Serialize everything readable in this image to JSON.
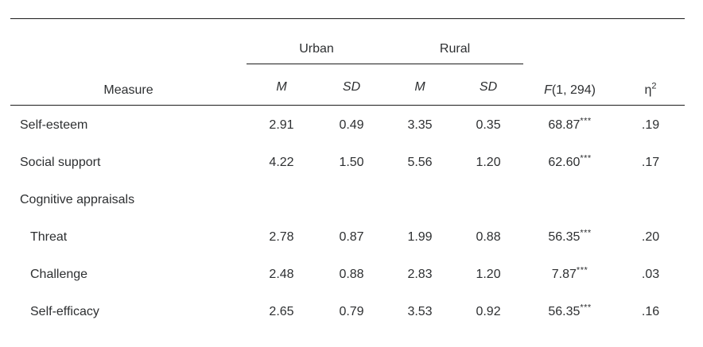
{
  "chart_data": {
    "type": "table",
    "headers": {
      "measure": "Measure",
      "group_urban": "Urban",
      "group_rural": "Rural",
      "f_prefix": "F",
      "f_suffix": "(1, 294)",
      "eta": "η",
      "eta_sup": "2",
      "urban_m": "M",
      "urban_sd": "SD",
      "rural_m": "M",
      "rural_sd": "SD"
    },
    "rows": [
      {
        "label": "Self-esteem",
        "urban_m": "2.91",
        "urban_sd": "0.49",
        "rural_m": "3.35",
        "rural_sd": "0.35",
        "f": "68.87",
        "sig": "***",
        "eta_sq": ".19"
      },
      {
        "label": "Social support",
        "urban_m": "4.22",
        "urban_sd": "1.50",
        "rural_m": "5.56",
        "rural_sd": "1.20",
        "f": "62.60",
        "sig": "***",
        "eta_sq": ".17"
      },
      {
        "label": "Cognitive appraisals",
        "urban_m": "",
        "urban_sd": "",
        "rural_m": "",
        "rural_sd": "",
        "f": "",
        "sig": "",
        "eta_sq": ""
      },
      {
        "label": "Threat",
        "urban_m": "2.78",
        "urban_sd": "0.87",
        "rural_m": "1.99",
        "rural_sd": "0.88",
        "f": "56.35",
        "sig": "***",
        "eta_sq": ".20"
      },
      {
        "label": "Challenge",
        "urban_m": "2.48",
        "urban_sd": "0.88",
        "rural_m": "2.83",
        "rural_sd": "1.20",
        "f": "7.87",
        "sig": "***",
        "eta_sq": ".03"
      },
      {
        "label": "Self-efficacy",
        "urban_m": "2.65",
        "urban_sd": "0.79",
        "rural_m": "3.53",
        "rural_sd": "0.92",
        "f": "56.35",
        "sig": "***",
        "eta_sq": ".16"
      }
    ]
  }
}
